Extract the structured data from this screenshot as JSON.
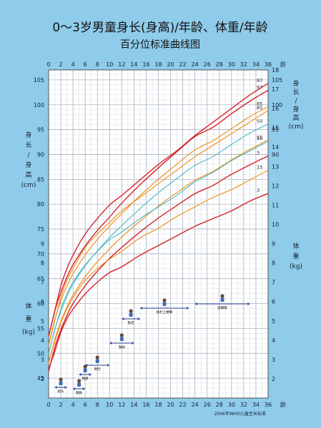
{
  "title_line1": "0～3岁男童身长(身高)/年龄、体重/年龄",
  "title_line2": "百分位标准曲线图",
  "x_unit_label": "龄",
  "left_top_axis_label": [
    "身",
    "长",
    "/",
    "身",
    "高",
    "(cm)"
  ],
  "right_top_axis_label": [
    "身",
    "长",
    "/",
    "身",
    "高",
    "(cm)"
  ],
  "left_bottom_axis_label": [
    "体",
    "重",
    "(kg)"
  ],
  "right_bottom_axis_label": [
    "体",
    "重",
    "(kg)"
  ],
  "source_note": "2006年WHO儿童生长标准",
  "colors": {
    "background": "#8fcbea",
    "plot_bg": "#ffffff",
    "grid_major": "#9aa7b4",
    "grid_minor": "#d3d9e0",
    "p3": "#d4242b",
    "p15": "#f08a12",
    "p50": "#4cb6c4",
    "p85": "#f08a12",
    "p97": "#d4242b"
  },
  "milestones": [
    {
      "label": "抬头",
      "age_range": [
        1,
        3
      ]
    },
    {
      "label": "翻身",
      "age_range": [
        4,
        6
      ]
    },
    {
      "label": "独坐",
      "age_range": [
        5,
        7
      ]
    },
    {
      "label": "爬行",
      "age_range": [
        6,
        10
      ]
    },
    {
      "label": "独站",
      "age_range": [
        10,
        14
      ]
    },
    {
      "label": "独走",
      "age_range": [
        12,
        15
      ]
    },
    {
      "label": "扶栏上楼梯",
      "age_range": [
        15,
        23
      ]
    },
    {
      "label": "双脚跳",
      "age_range": [
        24,
        33
      ]
    }
  ],
  "chart_data": [
    {
      "type": "line",
      "name": "身长/身高-年龄",
      "xlabel": "龄",
      "xlim": [
        0,
        36
      ],
      "x_ticks": [
        0,
        2,
        4,
        6,
        8,
        10,
        12,
        14,
        16,
        18,
        20,
        22,
        24,
        26,
        28,
        30,
        32,
        34,
        36
      ],
      "ylabel": "身长/身高 (cm)",
      "ylim": [
        41,
        107
      ],
      "left_ticks": [
        45,
        50,
        55,
        60,
        65,
        70,
        75,
        80,
        85,
        90,
        95,
        100,
        105
      ],
      "right_ticks": [
        90,
        95,
        100,
        105
      ],
      "x": [
        0,
        1,
        2,
        3,
        4,
        6,
        8,
        10,
        12,
        15,
        18,
        21,
        24,
        27,
        30,
        33,
        36
      ],
      "series": [
        {
          "name": "3",
          "label_at_end": true,
          "values": [
            46.3,
            51.1,
            54.7,
            57.6,
            60.0,
            63.6,
            66.5,
            69.1,
            71.3,
            74.4,
            77.2,
            79.7,
            82.1,
            83.8,
            86.0,
            87.9,
            89.7
          ]
        },
        {
          "name": "15",
          "label_at_end": true,
          "values": [
            47.9,
            52.7,
            56.4,
            59.3,
            61.7,
            65.4,
            68.4,
            71.0,
            73.4,
            76.6,
            79.6,
            82.3,
            84.8,
            86.6,
            88.9,
            91.0,
            92.9
          ]
        },
        {
          "name": "50",
          "label_at_end": true,
          "values": [
            49.9,
            54.7,
            58.4,
            61.4,
            63.9,
            67.6,
            70.6,
            73.3,
            75.7,
            79.1,
            82.3,
            85.1,
            87.8,
            89.6,
            92.0,
            94.3,
            96.1
          ]
        },
        {
          "name": "85",
          "label_at_end": true,
          "values": [
            51.8,
            56.7,
            60.5,
            63.5,
            66.0,
            69.8,
            72.9,
            75.6,
            78.1,
            81.7,
            85.0,
            88.0,
            90.9,
            92.8,
            95.2,
            97.6,
            99.6
          ]
        },
        {
          "name": "97",
          "label_at_end": true,
          "values": [
            53.4,
            58.4,
            62.2,
            65.3,
            67.8,
            71.6,
            74.7,
            77.4,
            80.2,
            83.9,
            87.3,
            90.5,
            93.6,
            95.5,
            98.2,
            100.7,
            102.9
          ]
        }
      ]
    },
    {
      "type": "line",
      "name": "体重-年龄",
      "xlabel": "龄",
      "xlim": [
        0,
        36
      ],
      "x_ticks": [
        0,
        2,
        4,
        6,
        8,
        10,
        12,
        14,
        16,
        18,
        20,
        22,
        24,
        26,
        28,
        30,
        32,
        34,
        36
      ],
      "ylabel": "体重 (kg)",
      "ylim": [
        1,
        18
      ],
      "left_ticks": [
        2,
        3,
        4,
        5,
        6,
        7,
        8,
        9
      ],
      "right_ticks": [
        2,
        3,
        4,
        5,
        6,
        7,
        8,
        9,
        10,
        11,
        12,
        13,
        14,
        15,
        16,
        17,
        18
      ],
      "x": [
        0,
        1,
        2,
        3,
        4,
        6,
        8,
        10,
        12,
        15,
        18,
        21,
        24,
        27,
        30,
        33,
        36
      ],
      "series": [
        {
          "name": "3",
          "label_at_end": true,
          "values": [
            2.5,
            3.4,
            4.4,
            5.1,
            5.6,
            6.4,
            7.0,
            7.5,
            7.8,
            8.4,
            8.9,
            9.4,
            9.9,
            10.3,
            10.7,
            11.2,
            11.6
          ]
        },
        {
          "name": "15",
          "label_at_end": true,
          "values": [
            2.9,
            3.9,
            4.9,
            5.6,
            6.2,
            7.1,
            7.7,
            8.2,
            8.6,
            9.3,
            9.8,
            10.4,
            10.9,
            11.4,
            11.8,
            12.3,
            12.8
          ]
        },
        {
          "name": "50",
          "label_at_end": true,
          "values": [
            3.3,
            4.5,
            5.6,
            6.4,
            7.0,
            7.9,
            8.6,
            9.2,
            9.6,
            10.3,
            10.9,
            11.5,
            12.2,
            12.7,
            13.3,
            13.8,
            14.3
          ]
        },
        {
          "name": "85",
          "label_at_end": true,
          "values": [
            3.7,
            5.0,
            6.2,
            7.1,
            7.7,
            8.8,
            9.5,
            10.1,
            10.7,
            11.4,
            12.1,
            12.8,
            13.5,
            14.1,
            14.7,
            15.3,
            15.9
          ]
        },
        {
          "name": "97",
          "label_at_end": true,
          "values": [
            4.2,
            5.5,
            6.8,
            7.7,
            8.4,
            9.5,
            10.3,
            11.0,
            11.5,
            12.3,
            13.1,
            13.8,
            14.6,
            15.3,
            16.0,
            16.7,
            17.3
          ]
        }
      ]
    }
  ]
}
